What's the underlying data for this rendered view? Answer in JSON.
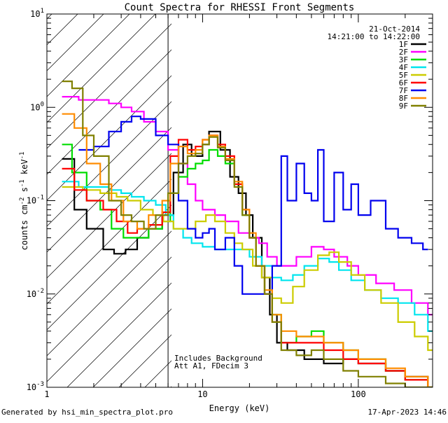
{
  "chart_data": {
    "type": "line",
    "title": "Count Spectra for RHESSI Front Segments",
    "xlabel": "Energy (keV)",
    "ylabel_parts": [
      "counts cm",
      "-2",
      " s",
      "-1",
      " keV",
      "-1"
    ],
    "xscale": "log",
    "yscale": "log",
    "xlim": [
      1,
      300
    ],
    "ylim": [
      0.001,
      10
    ],
    "x_tick_labels": [
      {
        "v": 1,
        "t": "1"
      },
      {
        "v": 10,
        "t": "10"
      },
      {
        "v": 100,
        "t": "100"
      }
    ],
    "y_tick_labels": [
      {
        "v": 10,
        "base": "10",
        "exp": "1"
      },
      {
        "v": 1,
        "base": "10",
        "exp": "0"
      },
      {
        "v": 0.1,
        "base": "10",
        "exp": "-1"
      },
      {
        "v": 0.01,
        "base": "10",
        "exp": "-2"
      },
      {
        "v": 0.001,
        "base": "10",
        "exp": "-3"
      }
    ],
    "attenuator_cutoff_keV": 6,
    "date": "21-Oct-2014",
    "time_range": "14:21:00 to 14:22:00",
    "annotations": [
      "Includes Background",
      "Att A1, FDecim 3"
    ],
    "legend_position": "top-right",
    "series": [
      {
        "name": "1F",
        "color": "#000000",
        "points": [
          [
            1.25,
            0.28
          ],
          [
            1.5,
            0.08
          ],
          [
            1.8,
            0.05
          ],
          [
            2.3,
            0.03
          ],
          [
            2.7,
            0.027
          ],
          [
            3.2,
            0.03
          ],
          [
            3.8,
            0.04
          ],
          [
            4.5,
            0.05
          ],
          [
            5.5,
            0.07
          ],
          [
            6.5,
            0.2
          ],
          [
            7.5,
            0.4
          ],
          [
            8.5,
            0.3
          ],
          [
            10,
            0.4
          ],
          [
            11,
            0.55
          ],
          [
            13,
            0.35
          ],
          [
            15,
            0.18
          ],
          [
            17,
            0.12
          ],
          [
            19,
            0.07
          ],
          [
            21,
            0.04
          ],
          [
            24,
            0.015
          ],
          [
            27,
            0.006
          ],
          [
            30,
            0.003
          ],
          [
            35,
            0.0025
          ],
          [
            45,
            0.002
          ],
          [
            60,
            0.0018
          ],
          [
            80,
            0.002
          ],
          [
            100,
            0.0018
          ],
          [
            150,
            0.0015
          ],
          [
            200,
            0.0013
          ],
          [
            280,
            0.001
          ]
        ]
      },
      {
        "name": "2F",
        "color": "#ff00ff",
        "points": [
          [
            1.25,
            1.3
          ],
          [
            1.6,
            1.2
          ],
          [
            2.0,
            1.2
          ],
          [
            2.5,
            1.1
          ],
          [
            3.0,
            1.0
          ],
          [
            3.5,
            0.9
          ],
          [
            4.2,
            0.7
          ],
          [
            5,
            0.55
          ],
          [
            6,
            0.35
          ],
          [
            7,
            0.25
          ],
          [
            8,
            0.15
          ],
          [
            9,
            0.1
          ],
          [
            10,
            0.08
          ],
          [
            12,
            0.07
          ],
          [
            14,
            0.06
          ],
          [
            17,
            0.045
          ],
          [
            20,
            0.04
          ],
          [
            23,
            0.035
          ],
          [
            26,
            0.025
          ],
          [
            30,
            0.02
          ],
          [
            35,
            0.02
          ],
          [
            40,
            0.025
          ],
          [
            50,
            0.032
          ],
          [
            60,
            0.03
          ],
          [
            70,
            0.025
          ],
          [
            85,
            0.02
          ],
          [
            100,
            0.016
          ],
          [
            130,
            0.013
          ],
          [
            170,
            0.011
          ],
          [
            220,
            0.008
          ],
          [
            280,
            0.006
          ]
        ]
      },
      {
        "name": "3F",
        "color": "#00dd00",
        "points": [
          [
            1.25,
            0.4
          ],
          [
            1.45,
            0.2
          ],
          [
            1.8,
            0.1
          ],
          [
            2.2,
            0.08
          ],
          [
            2.6,
            0.05
          ],
          [
            3.1,
            0.04
          ],
          [
            3.8,
            0.04
          ],
          [
            4.5,
            0.05
          ],
          [
            5.5,
            0.06
          ],
          [
            6.2,
            0.12
          ],
          [
            7,
            0.18
          ],
          [
            8,
            0.22
          ],
          [
            9,
            0.25
          ],
          [
            10,
            0.27
          ],
          [
            11,
            0.35
          ],
          [
            12.5,
            0.3
          ],
          [
            14,
            0.25
          ],
          [
            16,
            0.15
          ],
          [
            18,
            0.07
          ],
          [
            20,
            0.04
          ],
          [
            22,
            0.02
          ],
          [
            25,
            0.01
          ],
          [
            28,
            0.006
          ],
          [
            32,
            0.003
          ],
          [
            40,
            0.0035
          ],
          [
            50,
            0.004
          ],
          [
            60,
            0.003
          ],
          [
            80,
            0.0025
          ],
          [
            100,
            0.002
          ],
          [
            150,
            0.0015
          ],
          [
            200,
            0.0012
          ],
          [
            280,
            0.001
          ]
        ]
      },
      {
        "name": "4F",
        "color": "#00e5ee",
        "points": [
          [
            1.25,
            0.16
          ],
          [
            1.6,
            0.14
          ],
          [
            2,
            0.14
          ],
          [
            2.5,
            0.13
          ],
          [
            3,
            0.12
          ],
          [
            3.5,
            0.11
          ],
          [
            4.2,
            0.1
          ],
          [
            5,
            0.09
          ],
          [
            5.8,
            0.07
          ],
          [
            6.5,
            0.05
          ],
          [
            7.5,
            0.04
          ],
          [
            8.5,
            0.035
          ],
          [
            10,
            0.032
          ],
          [
            12,
            0.03
          ],
          [
            14,
            0.03
          ],
          [
            17,
            0.03
          ],
          [
            20,
            0.025
          ],
          [
            24,
            0.02
          ],
          [
            28,
            0.015
          ],
          [
            32,
            0.014
          ],
          [
            38,
            0.016
          ],
          [
            45,
            0.02
          ],
          [
            55,
            0.024
          ],
          [
            65,
            0.022
          ],
          [
            75,
            0.018
          ],
          [
            90,
            0.014
          ],
          [
            110,
            0.011
          ],
          [
            140,
            0.009
          ],
          [
            180,
            0.008
          ],
          [
            230,
            0.006
          ],
          [
            280,
            0.004
          ]
        ]
      },
      {
        "name": "5F",
        "color": "#cccc00",
        "points": [
          [
            1.25,
            0.14
          ],
          [
            1.7,
            0.13
          ],
          [
            2.2,
            0.12
          ],
          [
            2.8,
            0.11
          ],
          [
            3.3,
            0.1
          ],
          [
            4,
            0.08
          ],
          [
            4.8,
            0.07
          ],
          [
            5.6,
            0.06
          ],
          [
            6.5,
            0.05
          ],
          [
            7.5,
            0.05
          ],
          [
            9,
            0.06
          ],
          [
            10.5,
            0.07
          ],
          [
            12,
            0.06
          ],
          [
            14,
            0.045
          ],
          [
            16,
            0.035
          ],
          [
            18,
            0.03
          ],
          [
            21,
            0.02
          ],
          [
            24,
            0.015
          ],
          [
            28,
            0.009
          ],
          [
            32,
            0.008
          ],
          [
            38,
            0.012
          ],
          [
            45,
            0.018
          ],
          [
            55,
            0.026
          ],
          [
            65,
            0.028
          ],
          [
            75,
            0.022
          ],
          [
            90,
            0.016
          ],
          [
            110,
            0.011
          ],
          [
            140,
            0.008
          ],
          [
            180,
            0.005
          ],
          [
            230,
            0.0035
          ],
          [
            280,
            0.0025
          ]
        ]
      },
      {
        "name": "6F",
        "color": "#ff0000",
        "points": [
          [
            1.25,
            0.22
          ],
          [
            1.5,
            0.13
          ],
          [
            1.8,
            0.1
          ],
          [
            2.3,
            0.08
          ],
          [
            2.8,
            0.06
          ],
          [
            3.3,
            0.045
          ],
          [
            3.8,
            0.05
          ],
          [
            4.5,
            0.055
          ],
          [
            5.5,
            0.075
          ],
          [
            6.2,
            0.3
          ],
          [
            7,
            0.45
          ],
          [
            8,
            0.35
          ],
          [
            9,
            0.38
          ],
          [
            10,
            0.45
          ],
          [
            11,
            0.5
          ],
          [
            12.5,
            0.4
          ],
          [
            14,
            0.3
          ],
          [
            16,
            0.15
          ],
          [
            18,
            0.08
          ],
          [
            20,
            0.04
          ],
          [
            22,
            0.02
          ],
          [
            25,
            0.01
          ],
          [
            28,
            0.005
          ],
          [
            32,
            0.003
          ],
          [
            40,
            0.003
          ],
          [
            50,
            0.003
          ],
          [
            60,
            0.0025
          ],
          [
            80,
            0.002
          ],
          [
            100,
            0.0018
          ],
          [
            150,
            0.0015
          ],
          [
            200,
            0.0012
          ],
          [
            280,
            0.001
          ]
        ]
      },
      {
        "name": "7F",
        "color": "#0000ee",
        "points": [
          [
            1.6,
            0.35
          ],
          [
            2,
            0.38
          ],
          [
            2.5,
            0.55
          ],
          [
            3,
            0.7
          ],
          [
            3.5,
            0.8
          ],
          [
            4,
            0.75
          ],
          [
            5,
            0.5
          ],
          [
            6,
            0.4
          ],
          [
            7,
            0.1
          ],
          [
            8,
            0.05
          ],
          [
            9,
            0.04
          ],
          [
            10,
            0.045
          ],
          [
            11,
            0.05
          ],
          [
            12,
            0.03
          ],
          [
            14,
            0.04
          ],
          [
            16,
            0.02
          ],
          [
            18,
            0.01
          ],
          [
            20,
            0.01
          ],
          [
            24,
            0.01
          ],
          [
            28,
            0.02
          ],
          [
            32,
            0.3
          ],
          [
            35,
            0.1
          ],
          [
            40,
            0.25
          ],
          [
            45,
            0.12
          ],
          [
            50,
            0.1
          ],
          [
            55,
            0.35
          ],
          [
            60,
            0.06
          ],
          [
            70,
            0.2
          ],
          [
            80,
            0.08
          ],
          [
            90,
            0.15
          ],
          [
            100,
            0.07
          ],
          [
            120,
            0.1
          ],
          [
            150,
            0.05
          ],
          [
            180,
            0.04
          ],
          [
            220,
            0.035
          ],
          [
            260,
            0.03
          ]
        ]
      },
      {
        "name": "8F",
        "color": "#ff8c00",
        "points": [
          [
            1.25,
            0.85
          ],
          [
            1.5,
            0.6
          ],
          [
            1.8,
            0.25
          ],
          [
            2.2,
            0.15
          ],
          [
            2.6,
            0.1
          ],
          [
            3.1,
            0.06
          ],
          [
            3.8,
            0.05
          ],
          [
            4.5,
            0.07
          ],
          [
            5.5,
            0.1
          ],
          [
            6.2,
            0.25
          ],
          [
            7,
            0.38
          ],
          [
            8,
            0.32
          ],
          [
            9,
            0.35
          ],
          [
            10,
            0.45
          ],
          [
            11,
            0.5
          ],
          [
            12.5,
            0.38
          ],
          [
            14,
            0.28
          ],
          [
            16,
            0.16
          ],
          [
            18,
            0.08
          ],
          [
            20,
            0.045
          ],
          [
            22,
            0.02
          ],
          [
            25,
            0.011
          ],
          [
            28,
            0.006
          ],
          [
            32,
            0.004
          ],
          [
            40,
            0.0035
          ],
          [
            50,
            0.0035
          ],
          [
            60,
            0.003
          ],
          [
            80,
            0.0025
          ],
          [
            100,
            0.002
          ],
          [
            150,
            0.0016
          ],
          [
            200,
            0.0013
          ],
          [
            280,
            0.001
          ]
        ]
      },
      {
        "name": "9F",
        "color": "#808000",
        "points": [
          [
            1.25,
            1.9
          ],
          [
            1.45,
            1.6
          ],
          [
            1.7,
            0.5
          ],
          [
            2,
            0.3
          ],
          [
            2.5,
            0.1
          ],
          [
            3,
            0.07
          ],
          [
            3.5,
            0.06
          ],
          [
            4.2,
            0.05
          ],
          [
            5,
            0.07
          ],
          [
            6,
            0.12
          ],
          [
            7,
            0.25
          ],
          [
            8,
            0.3
          ],
          [
            9,
            0.32
          ],
          [
            10,
            0.4
          ],
          [
            11,
            0.48
          ],
          [
            12.5,
            0.37
          ],
          [
            14,
            0.27
          ],
          [
            16,
            0.14
          ],
          [
            18,
            0.07
          ],
          [
            20,
            0.04
          ],
          [
            22,
            0.02
          ],
          [
            25,
            0.01
          ],
          [
            28,
            0.005
          ],
          [
            32,
            0.0025
          ],
          [
            40,
            0.0022
          ],
          [
            50,
            0.0025
          ],
          [
            60,
            0.002
          ],
          [
            80,
            0.0015
          ],
          [
            100,
            0.0013
          ],
          [
            150,
            0.0011
          ],
          [
            200,
            0.001
          ],
          [
            280,
            0.001
          ]
        ]
      }
    ]
  },
  "footer": {
    "generator": "Generated by hsi_min_spectra_plot.pro",
    "timestamp": "17-Apr-2023 14:46"
  }
}
